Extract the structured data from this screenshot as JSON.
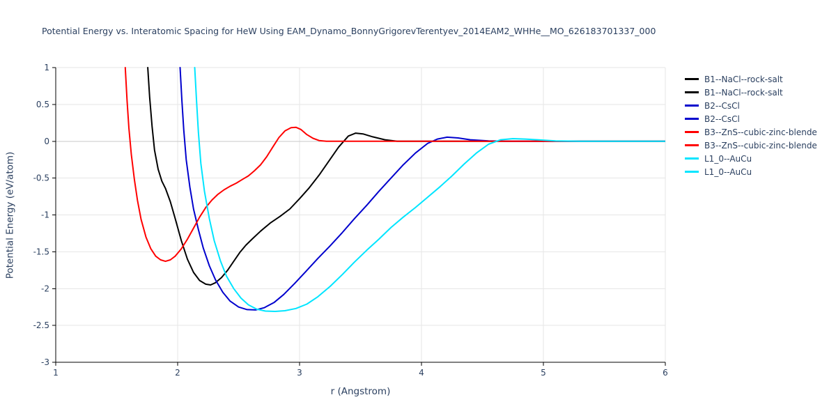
{
  "chart_data": {
    "type": "line",
    "title": "Potential Energy vs. Interatomic Spacing for HeW Using EAM_Dynamo_BonnyGrigorevTerentyev_2014EAM2_WHHe__MO_626183701337_000",
    "xlabel": "r (Angstrom)",
    "ylabel": "Potential Energy (eV/atom)",
    "xlim": [
      1,
      6
    ],
    "ylim": [
      -3,
      1
    ],
    "x_ticks": [
      1,
      2,
      3,
      4,
      5,
      6
    ],
    "y_ticks": [
      1,
      0.5,
      0,
      -0.5,
      -1,
      -1.5,
      -2,
      -2.5,
      -3
    ],
    "grid": true,
    "legend_position": "right",
    "colors": {
      "background": "#ffffff",
      "title": "#2a3f5f",
      "axis_text": "#2a3f5f",
      "grid": "#e6e6e6",
      "zero_line": "#c8c8c8",
      "axis_line": "#000000"
    },
    "legend_entries": [
      {
        "label": "B1--NaCl--rock-salt",
        "color": "#000000"
      },
      {
        "label": "B1--NaCl--rock-salt",
        "color": "#000000"
      },
      {
        "label": "B2--CsCl",
        "color": "#0000cd"
      },
      {
        "label": "B2--CsCl",
        "color": "#0000cd"
      },
      {
        "label": "B3--ZnS--cubic-zinc-blende",
        "color": "#ff0000"
      },
      {
        "label": "B3--ZnS--cubic-zinc-blende",
        "color": "#ff0000"
      },
      {
        "label": "L1_0--AuCu",
        "color": "#00e5ff"
      },
      {
        "label": "L1_0--AuCu",
        "color": "#00e5ff"
      }
    ],
    "series": [
      {
        "name": "B1--NaCl--rock-salt",
        "color": "#000000",
        "points": [
          [
            1.755,
            1.0
          ],
          [
            1.77,
            0.6
          ],
          [
            1.79,
            0.2
          ],
          [
            1.81,
            -0.12
          ],
          [
            1.84,
            -0.38
          ],
          [
            1.87,
            -0.54
          ],
          [
            1.9,
            -0.64
          ],
          [
            1.94,
            -0.82
          ],
          [
            1.98,
            -1.05
          ],
          [
            2.03,
            -1.35
          ],
          [
            2.08,
            -1.6
          ],
          [
            2.13,
            -1.78
          ],
          [
            2.18,
            -1.89
          ],
          [
            2.23,
            -1.94
          ],
          [
            2.27,
            -1.95
          ],
          [
            2.31,
            -1.92
          ],
          [
            2.36,
            -1.85
          ],
          [
            2.41,
            -1.75
          ],
          [
            2.46,
            -1.63
          ],
          [
            2.51,
            -1.51
          ],
          [
            2.56,
            -1.41
          ],
          [
            2.61,
            -1.33
          ],
          [
            2.68,
            -1.22
          ],
          [
            2.76,
            -1.11
          ],
          [
            2.84,
            -1.02
          ],
          [
            2.92,
            -0.92
          ],
          [
            3.0,
            -0.78
          ],
          [
            3.08,
            -0.63
          ],
          [
            3.16,
            -0.46
          ],
          [
            3.24,
            -0.27
          ],
          [
            3.32,
            -0.08
          ],
          [
            3.4,
            0.07
          ],
          [
            3.46,
            0.11
          ],
          [
            3.52,
            0.1
          ],
          [
            3.6,
            0.06
          ],
          [
            3.7,
            0.02
          ],
          [
            3.8,
            0.0
          ],
          [
            4.0,
            0.0
          ],
          [
            4.5,
            0.0
          ],
          [
            5.0,
            0.0
          ],
          [
            5.5,
            0.0
          ],
          [
            6.0,
            0.0
          ]
        ]
      },
      {
        "name": "B2--CsCl",
        "color": "#0000cd",
        "points": [
          [
            2.02,
            1.0
          ],
          [
            2.035,
            0.55
          ],
          [
            2.05,
            0.15
          ],
          [
            2.07,
            -0.25
          ],
          [
            2.1,
            -0.62
          ],
          [
            2.13,
            -0.92
          ],
          [
            2.17,
            -1.2
          ],
          [
            2.21,
            -1.45
          ],
          [
            2.26,
            -1.69
          ],
          [
            2.31,
            -1.88
          ],
          [
            2.37,
            -2.05
          ],
          [
            2.43,
            -2.17
          ],
          [
            2.5,
            -2.25
          ],
          [
            2.57,
            -2.285
          ],
          [
            2.64,
            -2.29
          ],
          [
            2.71,
            -2.26
          ],
          [
            2.79,
            -2.19
          ],
          [
            2.87,
            -2.08
          ],
          [
            2.96,
            -1.93
          ],
          [
            3.05,
            -1.77
          ],
          [
            3.15,
            -1.59
          ],
          [
            3.25,
            -1.42
          ],
          [
            3.35,
            -1.24
          ],
          [
            3.45,
            -1.05
          ],
          [
            3.55,
            -0.87
          ],
          [
            3.65,
            -0.68
          ],
          [
            3.75,
            -0.5
          ],
          [
            3.85,
            -0.32
          ],
          [
            3.95,
            -0.16
          ],
          [
            4.05,
            -0.03
          ],
          [
            4.13,
            0.03
          ],
          [
            4.21,
            0.055
          ],
          [
            4.3,
            0.045
          ],
          [
            4.4,
            0.02
          ],
          [
            4.55,
            0.005
          ],
          [
            4.7,
            0.0
          ],
          [
            5.0,
            0.0
          ],
          [
            5.5,
            0.0
          ],
          [
            6.0,
            0.0
          ]
        ]
      },
      {
        "name": "B3--ZnS--cubic-zinc-blende",
        "color": "#ff0000",
        "points": [
          [
            1.57,
            1.0
          ],
          [
            1.585,
            0.55
          ],
          [
            1.6,
            0.18
          ],
          [
            1.62,
            -0.18
          ],
          [
            1.645,
            -0.52
          ],
          [
            1.67,
            -0.8
          ],
          [
            1.7,
            -1.06
          ],
          [
            1.74,
            -1.3
          ],
          [
            1.78,
            -1.46
          ],
          [
            1.82,
            -1.56
          ],
          [
            1.86,
            -1.61
          ],
          [
            1.9,
            -1.63
          ],
          [
            1.94,
            -1.61
          ],
          [
            1.98,
            -1.56
          ],
          [
            2.03,
            -1.46
          ],
          [
            2.08,
            -1.33
          ],
          [
            2.13,
            -1.18
          ],
          [
            2.18,
            -1.03
          ],
          [
            2.23,
            -0.9
          ],
          [
            2.28,
            -0.8
          ],
          [
            2.33,
            -0.72
          ],
          [
            2.38,
            -0.66
          ],
          [
            2.43,
            -0.61
          ],
          [
            2.48,
            -0.57
          ],
          [
            2.53,
            -0.52
          ],
          [
            2.58,
            -0.47
          ],
          [
            2.63,
            -0.4
          ],
          [
            2.68,
            -0.32
          ],
          [
            2.73,
            -0.21
          ],
          [
            2.78,
            -0.08
          ],
          [
            2.83,
            0.05
          ],
          [
            2.88,
            0.14
          ],
          [
            2.93,
            0.185
          ],
          [
            2.97,
            0.19
          ],
          [
            3.01,
            0.16
          ],
          [
            3.06,
            0.09
          ],
          [
            3.11,
            0.04
          ],
          [
            3.16,
            0.01
          ],
          [
            3.22,
            0.0
          ],
          [
            3.5,
            0.0
          ],
          [
            4.0,
            0.0
          ],
          [
            4.5,
            0.0
          ],
          [
            5.0,
            0.0
          ],
          [
            6.0,
            0.0
          ]
        ]
      },
      {
        "name": "L1_0--AuCu",
        "color": "#00e5ff",
        "points": [
          [
            2.14,
            1.0
          ],
          [
            2.155,
            0.55
          ],
          [
            2.17,
            0.12
          ],
          [
            2.19,
            -0.3
          ],
          [
            2.22,
            -0.68
          ],
          [
            2.26,
            -1.05
          ],
          [
            2.3,
            -1.35
          ],
          [
            2.35,
            -1.62
          ],
          [
            2.4,
            -1.83
          ],
          [
            2.46,
            -2.0
          ],
          [
            2.52,
            -2.13
          ],
          [
            2.58,
            -2.22
          ],
          [
            2.65,
            -2.28
          ],
          [
            2.72,
            -2.305
          ],
          [
            2.8,
            -2.31
          ],
          [
            2.88,
            -2.3
          ],
          [
            2.97,
            -2.27
          ],
          [
            3.06,
            -2.21
          ],
          [
            3.15,
            -2.11
          ],
          [
            3.25,
            -1.97
          ],
          [
            3.35,
            -1.81
          ],
          [
            3.45,
            -1.64
          ],
          [
            3.55,
            -1.48
          ],
          [
            3.65,
            -1.33
          ],
          [
            3.75,
            -1.17
          ],
          [
            3.85,
            -1.03
          ],
          [
            3.95,
            -0.9
          ],
          [
            4.05,
            -0.76
          ],
          [
            4.15,
            -0.62
          ],
          [
            4.25,
            -0.47
          ],
          [
            4.35,
            -0.31
          ],
          [
            4.45,
            -0.16
          ],
          [
            4.55,
            -0.04
          ],
          [
            4.65,
            0.02
          ],
          [
            4.75,
            0.035
          ],
          [
            4.85,
            0.03
          ],
          [
            4.95,
            0.02
          ],
          [
            5.1,
            0.005
          ],
          [
            5.3,
            0.0
          ],
          [
            5.7,
            0.0
          ],
          [
            6.0,
            0.0
          ]
        ]
      }
    ]
  }
}
